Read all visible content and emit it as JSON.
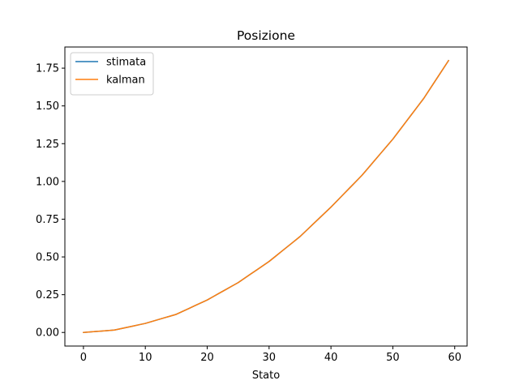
{
  "chart_data": {
    "type": "line",
    "title": "Posizione",
    "xlabel": "Stato",
    "ylabel": "",
    "xlim": [
      -3,
      62
    ],
    "ylim": [
      -0.09,
      1.89
    ],
    "xticks": [
      0,
      10,
      20,
      30,
      40,
      50,
      60
    ],
    "xtick_labels": [
      "0",
      "10",
      "20",
      "30",
      "40",
      "50",
      "60"
    ],
    "yticks": [
      0.0,
      0.25,
      0.5,
      0.75,
      1.0,
      1.25,
      1.5,
      1.75
    ],
    "ytick_labels": [
      "0.00",
      "0.25",
      "0.50",
      "0.75",
      "1.00",
      "1.25",
      "1.50",
      "1.75"
    ],
    "grid": false,
    "legend_position": "upper-left",
    "series": [
      {
        "name": "stimata",
        "color": "#1f77b4",
        "x": [
          0,
          5,
          10,
          15,
          20,
          25,
          30,
          35,
          40,
          45,
          50,
          55,
          59
        ],
        "y": [
          0.0,
          0.016,
          0.06,
          0.12,
          0.215,
          0.33,
          0.47,
          0.635,
          0.83,
          1.04,
          1.28,
          1.55,
          1.8
        ]
      },
      {
        "name": "kalman",
        "color": "#ff7f0e",
        "x": [
          0,
          5,
          10,
          15,
          20,
          25,
          30,
          35,
          40,
          45,
          50,
          55,
          59
        ],
        "y": [
          0.0,
          0.016,
          0.06,
          0.12,
          0.215,
          0.33,
          0.47,
          0.635,
          0.83,
          1.04,
          1.28,
          1.55,
          1.8
        ]
      }
    ]
  }
}
